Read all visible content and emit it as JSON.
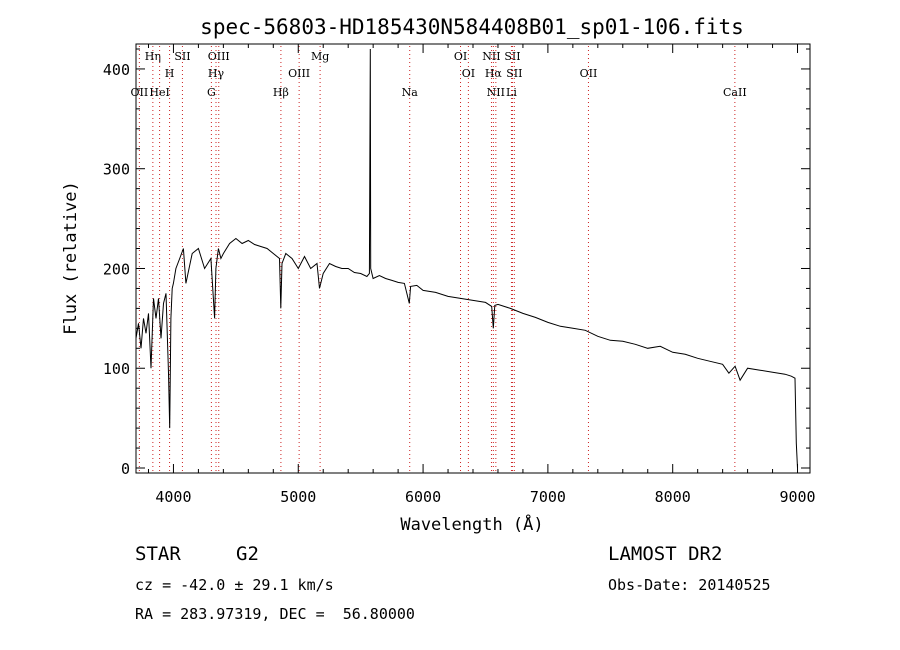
{
  "chart_data": {
    "type": "line",
    "title": "spec-56803-HD185430N584408B01_sp01-106.fits",
    "xlabel": "Wavelength (Å)",
    "ylabel": "Flux (relative)",
    "xlim": [
      3700,
      9100
    ],
    "ylim": [
      -5,
      425
    ],
    "xticks": [
      4000,
      5000,
      6000,
      7000,
      8000,
      9000
    ],
    "yticks": [
      0,
      100,
      200,
      300,
      400
    ],
    "grid": false,
    "line_color": "#000000",
    "marker_color": "#cc2222",
    "x": [
      3700,
      3720,
      3740,
      3760,
      3780,
      3800,
      3820,
      3840,
      3860,
      3880,
      3900,
      3920,
      3940,
      3960,
      3970,
      3980,
      3990,
      4000,
      4020,
      4050,
      4080,
      4100,
      4150,
      4200,
      4250,
      4300,
      4330,
      4340,
      4360,
      4380,
      4400,
      4450,
      4500,
      4550,
      4600,
      4650,
      4700,
      4750,
      4800,
      4850,
      4860,
      4870,
      4900,
      4950,
      5000,
      5050,
      5100,
      5150,
      5170,
      5200,
      5250,
      5300,
      5350,
      5400,
      5450,
      5500,
      5550,
      5570,
      5577,
      5580,
      5600,
      5650,
      5700,
      5750,
      5800,
      5850,
      5890,
      5900,
      5950,
      6000,
      6100,
      6200,
      6300,
      6400,
      6500,
      6550,
      6563,
      6575,
      6600,
      6700,
      6800,
      6900,
      7000,
      7100,
      7200,
      7300,
      7400,
      7500,
      7600,
      7700,
      7800,
      7900,
      8000,
      8100,
      8200,
      8300,
      8400,
      8450,
      8500,
      8540,
      8600,
      8700,
      8800,
      8900,
      8950,
      8980,
      8990,
      9000
    ],
    "y": [
      130,
      145,
      120,
      150,
      135,
      155,
      100,
      170,
      150,
      170,
      130,
      165,
      175,
      95,
      40,
      150,
      180,
      185,
      200,
      210,
      220,
      185,
      215,
      220,
      200,
      210,
      150,
      200,
      220,
      210,
      215,
      225,
      230,
      225,
      228,
      224,
      222,
      220,
      215,
      210,
      160,
      205,
      215,
      210,
      200,
      212,
      200,
      205,
      180,
      195,
      205,
      202,
      200,
      200,
      196,
      195,
      192,
      195,
      420,
      200,
      190,
      193,
      190,
      188,
      186,
      185,
      165,
      182,
      183,
      178,
      176,
      172,
      170,
      168,
      166,
      162,
      140,
      163,
      164,
      160,
      155,
      151,
      146,
      142,
      140,
      138,
      132,
      128,
      127,
      124,
      120,
      122,
      116,
      114,
      110,
      107,
      104,
      95,
      102,
      88,
      100,
      98,
      96,
      94,
      92,
      90,
      25,
      0
    ],
    "lines": [
      {
        "label": "OII",
        "wavelength": 3727,
        "row": 3
      },
      {
        "label": "Hη",
        "wavelength": 3835,
        "row": 1
      },
      {
        "label": "HeI",
        "wavelength": 3889,
        "row": 3
      },
      {
        "label": "H",
        "wavelength": 3969,
        "row": 2
      },
      {
        "label": "SII",
        "wavelength": 4072,
        "row": 1
      },
      {
        "label": "OIII",
        "wavelength": 4363,
        "row": 1
      },
      {
        "label": "Hγ",
        "wavelength": 4341,
        "row": 2
      },
      {
        "label": "G",
        "wavelength": 4304,
        "row": 3
      },
      {
        "label": "Hβ",
        "wavelength": 4861,
        "row": 3
      },
      {
        "label": "OIII",
        "wavelength": 5007,
        "row": 2
      },
      {
        "label": "Mg",
        "wavelength": 5175,
        "row": 1
      },
      {
        "label": "Na",
        "wavelength": 5893,
        "row": 3
      },
      {
        "label": "OI",
        "wavelength": 6300,
        "row": 1
      },
      {
        "label": "OI",
        "wavelength": 6363,
        "row": 2
      },
      {
        "label": "NII",
        "wavelength": 6548,
        "row": 1
      },
      {
        "label": "Hα",
        "wavelength": 6563,
        "row": 2
      },
      {
        "label": "NII",
        "wavelength": 6583,
        "row": 3
      },
      {
        "label": "SII",
        "wavelength": 6716,
        "row": 1
      },
      {
        "label": "SII",
        "wavelength": 6731,
        "row": 2
      },
      {
        "label": "Li",
        "wavelength": 6708,
        "row": 3
      },
      {
        "label": "OII",
        "wavelength": 7325,
        "row": 2
      },
      {
        "label": "CaII",
        "wavelength": 8498,
        "row": 3
      }
    ]
  },
  "info": {
    "object_type": "STAR",
    "subclass": "G2",
    "survey": "LAMOST DR2",
    "redshift": "cz = -42.0 ± 29.1 km/s",
    "obs_date": "Obs-Date: 20140525",
    "coords": "RA = 283.97319, DEC =  56.80000"
  }
}
